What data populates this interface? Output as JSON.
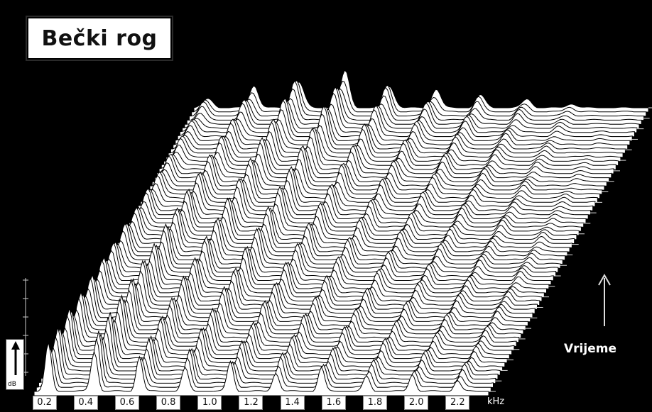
{
  "chart_data": {
    "type": "waterfall",
    "title": "Bečki rog",
    "xlabel_unit": "kHz",
    "zlabel": "dB",
    "time_axis_label": "Vrijeme",
    "x_ticks": [
      "0.2",
      "0.4",
      "0.6",
      "0.8",
      "1.0",
      "1.2",
      "1.4",
      "1.6",
      "1.8",
      "2.0",
      "2.2"
    ],
    "xlim": [
      0.15,
      2.35
    ],
    "peaks_khz": [
      0.22,
      0.44,
      0.66,
      0.88,
      1.1,
      1.32,
      1.54,
      1.76,
      1.98,
      2.2
    ],
    "peak_levels_front": [
      0.85,
      0.9,
      0.6,
      0.55,
      0.5,
      0.45,
      0.4,
      0.35,
      0.3,
      0.25
    ],
    "peak_levels_back": [
      0.25,
      0.45,
      0.7,
      0.75,
      0.55,
      0.4,
      0.3,
      0.2,
      0.1,
      0.0
    ],
    "slice_count": 70,
    "colors": {
      "background": "#000000",
      "surface": "#ffffff",
      "ink": "#000000"
    }
  }
}
